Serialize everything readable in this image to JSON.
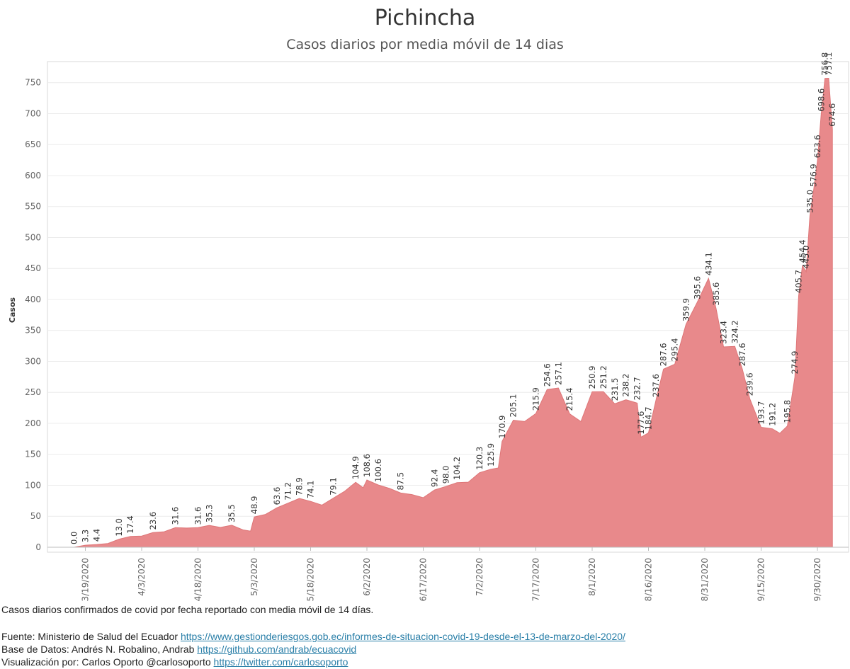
{
  "title": "Pichincha",
  "subtitle": "Casos diarios por media móvil de 14 dias",
  "footer": {
    "caption": "Casos diarios confirmados de covid por fecha reportado con media móvil de 14 días.",
    "source_label": "Fuente: Ministerio de Salud del Ecuador",
    "source_link": "https://www.gestionderiesgos.gob.ec/informes-de-situacion-covid-19-desde-el-13-de-marzo-del-2020/",
    "database_label": "Base de Datos: Andrés N. Robalino, Andrab",
    "database_link": "https://github.com/andrab/ecuacovid",
    "viz_label": "Visualización por: Carlos Oporto @carlosoporto",
    "viz_link": "https://twitter.com/carlosoporto"
  },
  "chart_data": {
    "type": "area",
    "title": "Pichincha",
    "subtitle": "Casos diarios por media móvil de 14 dias",
    "ylabel": "Casos",
    "xlabel": "",
    "ylim": [
      0,
      790
    ],
    "yticks": [
      0,
      50,
      100,
      150,
      200,
      250,
      300,
      350,
      400,
      450,
      500,
      550,
      600,
      650,
      700,
      750
    ],
    "x_range": [
      "2020-03-13",
      "2020-09-28"
    ],
    "xticks": [
      {
        "date": "2020-03-19",
        "label": "3/19/2020"
      },
      {
        "date": "2020-04-03",
        "label": "4/3/2020"
      },
      {
        "date": "2020-04-18",
        "label": "4/18/2020"
      },
      {
        "date": "2020-05-03",
        "label": "5/3/2020"
      },
      {
        "date": "2020-05-18",
        "label": "5/18/2020"
      },
      {
        "date": "2020-06-02",
        "label": "6/2/2020"
      },
      {
        "date": "2020-06-17",
        "label": "6/17/2020"
      },
      {
        "date": "2020-07-02",
        "label": "7/2/2020"
      },
      {
        "date": "2020-07-17",
        "label": "7/17/2020"
      },
      {
        "date": "2020-08-01",
        "label": "8/1/2020"
      },
      {
        "date": "2020-08-16",
        "label": "8/16/2020"
      },
      {
        "date": "2020-08-31",
        "label": "8/31/2020"
      },
      {
        "date": "2020-09-15",
        "label": "9/15/2020"
      },
      {
        "date": "2020-09-30",
        "label": "9/30/2020"
      }
    ],
    "fill_color": "#e8898b",
    "grid": true,
    "series": [
      {
        "points": [
          [
            "2020-03-13",
            0
          ],
          [
            "2020-03-16",
            0.0
          ],
          [
            "2020-03-19",
            3.3
          ],
          [
            "2020-03-22",
            4.4
          ],
          [
            "2020-03-25",
            6
          ],
          [
            "2020-03-28",
            13.0
          ],
          [
            "2020-03-31",
            17.4
          ],
          [
            "2020-04-03",
            18
          ],
          [
            "2020-04-06",
            23.6
          ],
          [
            "2020-04-09",
            25
          ],
          [
            "2020-04-12",
            31.6
          ],
          [
            "2020-04-15",
            31
          ],
          [
            "2020-04-18",
            31.6
          ],
          [
            "2020-04-21",
            35.3
          ],
          [
            "2020-04-24",
            32
          ],
          [
            "2020-04-27",
            35.5
          ],
          [
            "2020-04-30",
            28
          ],
          [
            "2020-05-02",
            26
          ],
          [
            "2020-05-03",
            48.9
          ],
          [
            "2020-05-06",
            53
          ],
          [
            "2020-05-09",
            63.6
          ],
          [
            "2020-05-12",
            71.2
          ],
          [
            "2020-05-15",
            78.9
          ],
          [
            "2020-05-18",
            74.1
          ],
          [
            "2020-05-21",
            68
          ],
          [
            "2020-05-24",
            79.1
          ],
          [
            "2020-05-27",
            90
          ],
          [
            "2020-05-30",
            104.9
          ],
          [
            "2020-06-01",
            96
          ],
          [
            "2020-06-02",
            108.6
          ],
          [
            "2020-06-05",
            100.6
          ],
          [
            "2020-06-08",
            95
          ],
          [
            "2020-06-11",
            87.5
          ],
          [
            "2020-06-14",
            85
          ],
          [
            "2020-06-17",
            80
          ],
          [
            "2020-06-20",
            92.4
          ],
          [
            "2020-06-23",
            98.0
          ],
          [
            "2020-06-26",
            104.2
          ],
          [
            "2020-06-29",
            105
          ],
          [
            "2020-07-02",
            120.3
          ],
          [
            "2020-07-05",
            125.9
          ],
          [
            "2020-07-07",
            128
          ],
          [
            "2020-07-08",
            170.9
          ],
          [
            "2020-07-11",
            205.1
          ],
          [
            "2020-07-14",
            203
          ],
          [
            "2020-07-17",
            215.9
          ],
          [
            "2020-07-20",
            254.6
          ],
          [
            "2020-07-23",
            257.1
          ],
          [
            "2020-07-26",
            215.4
          ],
          [
            "2020-07-29",
            203
          ],
          [
            "2020-08-01",
            250.9
          ],
          [
            "2020-08-04",
            251.2
          ],
          [
            "2020-08-07",
            231.5
          ],
          [
            "2020-08-10",
            238.2
          ],
          [
            "2020-08-13",
            232.7
          ],
          [
            "2020-08-14",
            177.6
          ],
          [
            "2020-08-16",
            184.7
          ],
          [
            "2020-08-18",
            237.6
          ],
          [
            "2020-08-20",
            287.6
          ],
          [
            "2020-08-23",
            295.4
          ],
          [
            "2020-08-26",
            359.9
          ],
          [
            "2020-08-29",
            395.6
          ],
          [
            "2020-09-01",
            434.1
          ],
          [
            "2020-09-03",
            385.6
          ],
          [
            "2020-09-05",
            323.4
          ],
          [
            "2020-09-08",
            324.2
          ],
          [
            "2020-09-10",
            287.6
          ],
          [
            "2020-09-12",
            239.6
          ],
          [
            "2020-09-15",
            193.7
          ],
          [
            "2020-09-18",
            191.2
          ],
          [
            "2020-09-20",
            184
          ],
          [
            "2020-09-22",
            195.8
          ],
          [
            "2020-09-24",
            274.9
          ],
          [
            "2020-09-25",
            405.7
          ],
          [
            "2020-09-26",
            454.4
          ],
          [
            "2020-09-27",
            445.0
          ],
          [
            "2020-09-28",
            535.0
          ],
          [
            "2020-09-29",
            576.9
          ],
          [
            "2020-09-30",
            623.6
          ],
          [
            "2020-10-01",
            698.6
          ],
          [
            "2020-10-02",
            756.8
          ],
          [
            "2020-10-03",
            757.1
          ],
          [
            "2020-10-04",
            674.6
          ]
        ]
      }
    ],
    "data_labels": [
      {
        "date": "2020-03-16",
        "value": 0.0,
        "text": "0.0"
      },
      {
        "date": "2020-03-19",
        "value": 3.3,
        "text": "3.3"
      },
      {
        "date": "2020-03-22",
        "value": 4.4,
        "text": "4.4"
      },
      {
        "date": "2020-03-28",
        "value": 13.0,
        "text": "13.0"
      },
      {
        "date": "2020-03-31",
        "value": 17.4,
        "text": "17.4"
      },
      {
        "date": "2020-04-06",
        "value": 23.6,
        "text": "23.6"
      },
      {
        "date": "2020-04-12",
        "value": 31.6,
        "text": "31.6"
      },
      {
        "date": "2020-04-18",
        "value": 31.6,
        "text": "31.6"
      },
      {
        "date": "2020-04-21",
        "value": 35.3,
        "text": "35.3"
      },
      {
        "date": "2020-04-27",
        "value": 35.5,
        "text": "35.5"
      },
      {
        "date": "2020-05-03",
        "value": 48.9,
        "text": "48.9"
      },
      {
        "date": "2020-05-09",
        "value": 63.6,
        "text": "63.6"
      },
      {
        "date": "2020-05-12",
        "value": 71.2,
        "text": "71.2"
      },
      {
        "date": "2020-05-15",
        "value": 78.9,
        "text": "78.9"
      },
      {
        "date": "2020-05-18",
        "value": 74.1,
        "text": "74.1"
      },
      {
        "date": "2020-05-24",
        "value": 79.1,
        "text": "79.1"
      },
      {
        "date": "2020-05-30",
        "value": 104.9,
        "text": "104.9"
      },
      {
        "date": "2020-06-02",
        "value": 108.6,
        "text": "108.6"
      },
      {
        "date": "2020-06-05",
        "value": 100.6,
        "text": "100.6"
      },
      {
        "date": "2020-06-11",
        "value": 87.5,
        "text": "87.5"
      },
      {
        "date": "2020-06-20",
        "value": 92.4,
        "text": "92.4"
      },
      {
        "date": "2020-06-23",
        "value": 98.0,
        "text": "98.0"
      },
      {
        "date": "2020-06-26",
        "value": 104.2,
        "text": "104.2"
      },
      {
        "date": "2020-07-02",
        "value": 120.3,
        "text": "120.3"
      },
      {
        "date": "2020-07-05",
        "value": 125.9,
        "text": "125.9"
      },
      {
        "date": "2020-07-08",
        "value": 170.9,
        "text": "170.9"
      },
      {
        "date": "2020-07-11",
        "value": 205.1,
        "text": "205.1"
      },
      {
        "date": "2020-07-17",
        "value": 215.9,
        "text": "215.9"
      },
      {
        "date": "2020-07-20",
        "value": 254.6,
        "text": "254.6"
      },
      {
        "date": "2020-07-23",
        "value": 257.1,
        "text": "257.1"
      },
      {
        "date": "2020-07-26",
        "value": 215.4,
        "text": "215.4"
      },
      {
        "date": "2020-08-01",
        "value": 250.9,
        "text": "250.9"
      },
      {
        "date": "2020-08-04",
        "value": 251.2,
        "text": "251.2"
      },
      {
        "date": "2020-08-07",
        "value": 231.5,
        "text": "231.5"
      },
      {
        "date": "2020-08-10",
        "value": 238.2,
        "text": "238.2"
      },
      {
        "date": "2020-08-13",
        "value": 232.7,
        "text": "232.7"
      },
      {
        "date": "2020-08-14",
        "value": 177.6,
        "text": "177.6"
      },
      {
        "date": "2020-08-16",
        "value": 184.7,
        "text": "184.7"
      },
      {
        "date": "2020-08-18",
        "value": 237.6,
        "text": "237.6"
      },
      {
        "date": "2020-08-20",
        "value": 287.6,
        "text": "287.6"
      },
      {
        "date": "2020-08-23",
        "value": 295.4,
        "text": "295.4"
      },
      {
        "date": "2020-08-26",
        "value": 359.9,
        "text": "359.9"
      },
      {
        "date": "2020-08-29",
        "value": 395.6,
        "text": "395.6"
      },
      {
        "date": "2020-09-01",
        "value": 434.1,
        "text": "434.1"
      },
      {
        "date": "2020-09-03",
        "value": 385.6,
        "text": "385.6"
      },
      {
        "date": "2020-09-05",
        "value": 323.4,
        "text": "323.4"
      },
      {
        "date": "2020-09-08",
        "value": 324.2,
        "text": "324.2"
      },
      {
        "date": "2020-09-10",
        "value": 287.6,
        "text": "287.6"
      },
      {
        "date": "2020-09-12",
        "value": 239.6,
        "text": "239.6"
      },
      {
        "date": "2020-09-15",
        "value": 193.7,
        "text": "193.7"
      },
      {
        "date": "2020-09-18",
        "value": 191.2,
        "text": "191.2"
      },
      {
        "date": "2020-09-22",
        "value": 195.8,
        "text": "195.8"
      },
      {
        "date": "2020-09-24",
        "value": 274.9,
        "text": "274.9"
      },
      {
        "date": "2020-09-25",
        "value": 405.7,
        "text": "405.7"
      },
      {
        "date": "2020-09-26",
        "value": 454.4,
        "text": "454.4"
      },
      {
        "date": "2020-09-27",
        "value": 445.0,
        "text": "445.0"
      },
      {
        "date": "2020-09-28",
        "value": 535.0,
        "text": "535.0"
      },
      {
        "date": "2020-09-29",
        "value": 576.9,
        "text": "576.9"
      },
      {
        "date": "2020-09-30",
        "value": 623.6,
        "text": "623.6"
      },
      {
        "date": "2020-10-01",
        "value": 698.6,
        "text": "698.6"
      },
      {
        "date": "2020-10-02",
        "value": 756.8,
        "text": "756.8"
      },
      {
        "date": "2020-10-03",
        "value": 757.1,
        "text": "757.1"
      },
      {
        "date": "2020-10-04",
        "value": 674.6,
        "text": "674.6"
      }
    ]
  }
}
